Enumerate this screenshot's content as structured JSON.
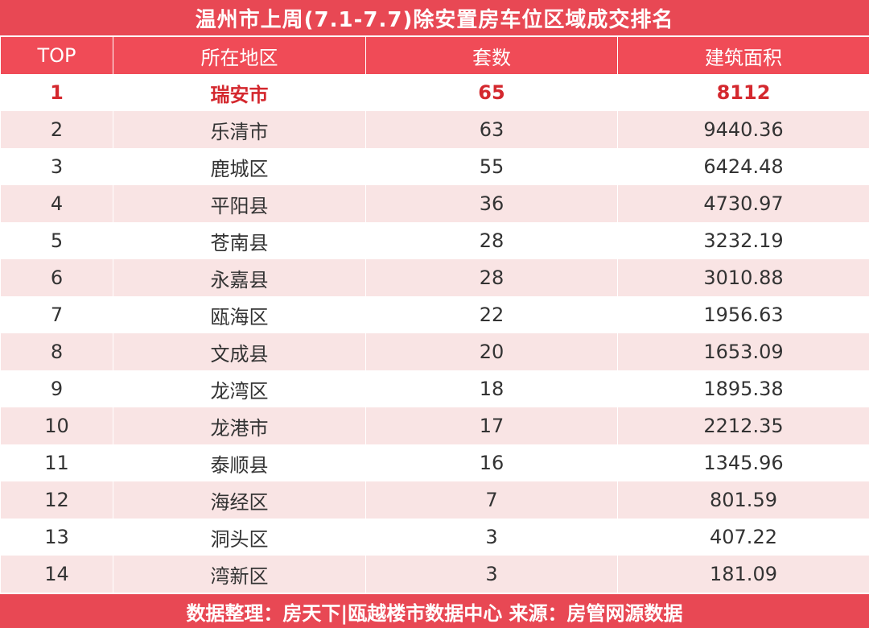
{
  "title": "温州市上周(7.1-7.7)除安置房车位区域成交排名",
  "columns": [
    "TOP",
    "所在地区",
    "套数",
    "建筑面积"
  ],
  "rows": [
    {
      "rank": "1",
      "region": "瑞安市",
      "units": "65",
      "area": "8112"
    },
    {
      "rank": "2",
      "region": "乐清市",
      "units": "63",
      "area": "9440.36"
    },
    {
      "rank": "3",
      "region": "鹿城区",
      "units": "55",
      "area": "6424.48"
    },
    {
      "rank": "4",
      "region": "平阳县",
      "units": "36",
      "area": "4730.97"
    },
    {
      "rank": "5",
      "region": "苍南县",
      "units": "28",
      "area": "3232.19"
    },
    {
      "rank": "6",
      "region": "永嘉县",
      "units": "28",
      "area": "3010.88"
    },
    {
      "rank": "7",
      "region": "瓯海区",
      "units": "22",
      "area": "1956.63"
    },
    {
      "rank": "8",
      "region": "文成县",
      "units": "20",
      "area": "1653.09"
    },
    {
      "rank": "9",
      "region": "龙湾区",
      "units": "18",
      "area": "1895.38"
    },
    {
      "rank": "10",
      "region": "龙港市",
      "units": "17",
      "area": "2212.35"
    },
    {
      "rank": "11",
      "region": "泰顺县",
      "units": "16",
      "area": "1345.96"
    },
    {
      "rank": "12",
      "region": "海经区",
      "units": "7",
      "area": "801.59"
    },
    {
      "rank": "13",
      "region": "洞头区",
      "units": "3",
      "area": "407.22"
    },
    {
      "rank": "14",
      "region": "湾新区",
      "units": "3",
      "area": "181.09"
    }
  ],
  "footer": "数据整理：房天下|瓯越楼市数据中心  来源：房管网源数据",
  "colors": {
    "header_red": "#f04b57",
    "title_red": "#e84854",
    "highlight_text": "#d4282e",
    "stripe": "#f9e4e4"
  }
}
